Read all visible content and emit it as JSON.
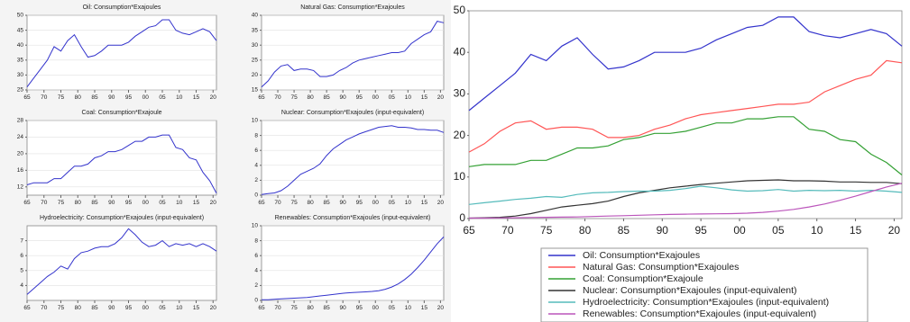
{
  "chart_data": [
    {
      "type": "line",
      "title": "Oil: Consumption*Exajoules",
      "color": "#3333cc",
      "x": [
        1965,
        1967,
        1969,
        1971,
        1973,
        1975,
        1977,
        1979,
        1981,
        1983,
        1985,
        1987,
        1989,
        1991,
        1993,
        1995,
        1997,
        1999,
        2001,
        2003,
        2005,
        2007,
        2009,
        2011,
        2013,
        2015,
        2017,
        2019,
        2021
      ],
      "values": [
        26,
        29,
        32,
        35,
        39.5,
        38,
        41.5,
        43.5,
        39.5,
        36,
        36.5,
        38,
        40,
        40,
        40,
        41,
        43,
        44.5,
        46,
        46.5,
        48.5,
        48.5,
        45,
        44,
        43.5,
        44.5,
        45.5,
        44.5,
        41.5
      ],
      "xlim": [
        1965,
        2021
      ],
      "xticks": [
        {
          "value": 1965,
          "label": "65"
        },
        {
          "value": 1970,
          "label": "70"
        },
        {
          "value": 1975,
          "label": "75"
        },
        {
          "value": 1980,
          "label": "80"
        },
        {
          "value": 1985,
          "label": "85"
        },
        {
          "value": 1990,
          "label": "90"
        },
        {
          "value": 1995,
          "label": "95"
        },
        {
          "value": 2000,
          "label": "00"
        },
        {
          "value": 2005,
          "label": "05"
        },
        {
          "value": 2010,
          "label": "10"
        },
        {
          "value": 2015,
          "label": "15"
        },
        {
          "value": 2020,
          "label": "20"
        }
      ],
      "ylim": [
        25,
        50
      ],
      "yticks": [
        25,
        30,
        35,
        40,
        45,
        50
      ],
      "grid": true
    },
    {
      "type": "line",
      "title": "Natural Gas: Consumption*Exajoules",
      "color": "#3333cc",
      "x": [
        1965,
        1967,
        1969,
        1971,
        1973,
        1975,
        1977,
        1979,
        1981,
        1983,
        1985,
        1987,
        1989,
        1991,
        1993,
        1995,
        1997,
        1999,
        2001,
        2003,
        2005,
        2007,
        2009,
        2011,
        2013,
        2015,
        2017,
        2019,
        2021
      ],
      "values": [
        16,
        18,
        21,
        23,
        23.5,
        21.5,
        22,
        22,
        21.5,
        19.5,
        19.5,
        20,
        21.5,
        22.5,
        24,
        25,
        25.5,
        26,
        26.5,
        27,
        27.5,
        27.5,
        28,
        30.5,
        32,
        33.5,
        34.5,
        38,
        37.5
      ],
      "xlim": [
        1965,
        2021
      ],
      "xticks": [
        {
          "value": 1965,
          "label": "65"
        },
        {
          "value": 1970,
          "label": "70"
        },
        {
          "value": 1975,
          "label": "75"
        },
        {
          "value": 1980,
          "label": "80"
        },
        {
          "value": 1985,
          "label": "85"
        },
        {
          "value": 1990,
          "label": "90"
        },
        {
          "value": 1995,
          "label": "95"
        },
        {
          "value": 2000,
          "label": "00"
        },
        {
          "value": 2005,
          "label": "05"
        },
        {
          "value": 2010,
          "label": "10"
        },
        {
          "value": 2015,
          "label": "15"
        },
        {
          "value": 2020,
          "label": "20"
        }
      ],
      "ylim": [
        15,
        40
      ],
      "yticks": [
        15,
        20,
        25,
        30,
        35,
        40
      ],
      "grid": true
    },
    {
      "type": "line",
      "title": "Coal: Consumption*Exajoule",
      "color": "#3333cc",
      "x": [
        1965,
        1967,
        1969,
        1971,
        1973,
        1975,
        1977,
        1979,
        1981,
        1983,
        1985,
        1987,
        1989,
        1991,
        1993,
        1995,
        1997,
        1999,
        2001,
        2003,
        2005,
        2007,
        2009,
        2011,
        2013,
        2015,
        2017,
        2019,
        2021
      ],
      "values": [
        12.5,
        13,
        13,
        13,
        14,
        14,
        15.5,
        17,
        17,
        17.5,
        19,
        19.5,
        20.5,
        20.5,
        21,
        22,
        23,
        23,
        24,
        24,
        24.5,
        24.5,
        21.5,
        21,
        19,
        18.5,
        15.5,
        13.5,
        10.5
      ],
      "xlim": [
        1965,
        2021
      ],
      "xticks": [
        {
          "value": 1965,
          "label": "65"
        },
        {
          "value": 1970,
          "label": "70"
        },
        {
          "value": 1975,
          "label": "75"
        },
        {
          "value": 1980,
          "label": "80"
        },
        {
          "value": 1985,
          "label": "85"
        },
        {
          "value": 1990,
          "label": "90"
        },
        {
          "value": 1995,
          "label": "95"
        },
        {
          "value": 2000,
          "label": "00"
        },
        {
          "value": 2005,
          "label": "05"
        },
        {
          "value": 2010,
          "label": "10"
        },
        {
          "value": 2015,
          "label": "15"
        },
        {
          "value": 2020,
          "label": "20"
        }
      ],
      "ylim": [
        10,
        28
      ],
      "yticks": [
        12,
        16,
        20,
        24,
        28
      ],
      "grid": true
    },
    {
      "type": "line",
      "title": "Nuclear: Consumption*Exajoules (input-equivalent)",
      "color": "#3333cc",
      "x": [
        1965,
        1967,
        1969,
        1971,
        1973,
        1975,
        1977,
        1979,
        1981,
        1983,
        1985,
        1987,
        1989,
        1991,
        1993,
        1995,
        1997,
        1999,
        2001,
        2003,
        2005,
        2007,
        2009,
        2011,
        2013,
        2015,
        2017,
        2019,
        2021
      ],
      "values": [
        0.1,
        0.2,
        0.3,
        0.6,
        1.2,
        2,
        2.8,
        3.2,
        3.6,
        4.2,
        5.3,
        6.2,
        6.8,
        7.4,
        7.8,
        8.2,
        8.5,
        8.8,
        9.1,
        9.2,
        9.3,
        9.1,
        9.1,
        9,
        8.8,
        8.8,
        8.7,
        8.7,
        8.4
      ],
      "xlim": [
        1965,
        2021
      ],
      "xticks": [
        {
          "value": 1965,
          "label": "65"
        },
        {
          "value": 1970,
          "label": "70"
        },
        {
          "value": 1975,
          "label": "75"
        },
        {
          "value": 1980,
          "label": "80"
        },
        {
          "value": 1985,
          "label": "85"
        },
        {
          "value": 1990,
          "label": "90"
        },
        {
          "value": 1995,
          "label": "95"
        },
        {
          "value": 2000,
          "label": "00"
        },
        {
          "value": 2005,
          "label": "05"
        },
        {
          "value": 2010,
          "label": "10"
        },
        {
          "value": 2015,
          "label": "15"
        },
        {
          "value": 2020,
          "label": "20"
        }
      ],
      "ylim": [
        0,
        10
      ],
      "yticks": [
        0,
        2,
        4,
        6,
        8,
        10
      ],
      "grid": true
    },
    {
      "type": "line",
      "title": "Hydroelectricity: Consumption*Exajoules (input-equivalent)",
      "color": "#3333cc",
      "x": [
        1965,
        1967,
        1969,
        1971,
        1973,
        1975,
        1977,
        1979,
        1981,
        1983,
        1985,
        1987,
        1989,
        1991,
        1993,
        1995,
        1997,
        1999,
        2001,
        2003,
        2005,
        2007,
        2009,
        2011,
        2013,
        2015,
        2017,
        2019,
        2021
      ],
      "values": [
        3.4,
        3.8,
        4.2,
        4.6,
        4.9,
        5.3,
        5.1,
        5.8,
        6.2,
        6.3,
        6.5,
        6.6,
        6.6,
        6.8,
        7.2,
        7.8,
        7.4,
        6.9,
        6.6,
        6.7,
        7,
        6.6,
        6.8,
        6.7,
        6.8,
        6.6,
        6.8,
        6.6,
        6.3
      ],
      "xlim": [
        1965,
        2021
      ],
      "xticks": [
        {
          "value": 1965,
          "label": "65"
        },
        {
          "value": 1970,
          "label": "70"
        },
        {
          "value": 1975,
          "label": "75"
        },
        {
          "value": 1980,
          "label": "80"
        },
        {
          "value": 1985,
          "label": "85"
        },
        {
          "value": 1990,
          "label": "90"
        },
        {
          "value": 1995,
          "label": "95"
        },
        {
          "value": 2000,
          "label": "00"
        },
        {
          "value": 2005,
          "label": "05"
        },
        {
          "value": 2010,
          "label": "10"
        },
        {
          "value": 2015,
          "label": "15"
        },
        {
          "value": 2020,
          "label": "20"
        }
      ],
      "ylim": [
        3,
        8
      ],
      "yticks": [
        4,
        5,
        6,
        7
      ],
      "grid": true
    },
    {
      "type": "line",
      "title": "Renewables: Consumption*Exajoules (input-equivalent)",
      "color": "#3333cc",
      "x": [
        1965,
        1967,
        1969,
        1971,
        1973,
        1975,
        1977,
        1979,
        1981,
        1983,
        1985,
        1987,
        1989,
        1991,
        1993,
        1995,
        1997,
        1999,
        2001,
        2003,
        2005,
        2007,
        2009,
        2011,
        2013,
        2015,
        2017,
        2019,
        2021
      ],
      "values": [
        0.1,
        0.1,
        0.15,
        0.2,
        0.25,
        0.3,
        0.35,
        0.4,
        0.5,
        0.6,
        0.7,
        0.8,
        0.9,
        1,
        1.05,
        1.1,
        1.15,
        1.2,
        1.3,
        1.5,
        1.8,
        2.2,
        2.8,
        3.5,
        4.4,
        5.4,
        6.5,
        7.6,
        8.5
      ],
      "xlim": [
        1965,
        2021
      ],
      "xticks": [
        {
          "value": 1965,
          "label": "65"
        },
        {
          "value": 1970,
          "label": "70"
        },
        {
          "value": 1975,
          "label": "75"
        },
        {
          "value": 1980,
          "label": "80"
        },
        {
          "value": 1985,
          "label": "85"
        },
        {
          "value": 1990,
          "label": "90"
        },
        {
          "value": 1995,
          "label": "95"
        },
        {
          "value": 2000,
          "label": "00"
        },
        {
          "value": 2005,
          "label": "05"
        },
        {
          "value": 2010,
          "label": "10"
        },
        {
          "value": 2015,
          "label": "15"
        },
        {
          "value": 2020,
          "label": "20"
        }
      ],
      "ylim": [
        0,
        10
      ],
      "yticks": [
        0,
        2,
        4,
        6,
        8,
        10
      ],
      "grid": true
    },
    {
      "type": "line",
      "legend": "bottom",
      "x": [
        1965,
        1967,
        1969,
        1971,
        1973,
        1975,
        1977,
        1979,
        1981,
        1983,
        1985,
        1987,
        1989,
        1991,
        1993,
        1995,
        1997,
        1999,
        2001,
        2003,
        2005,
        2007,
        2009,
        2011,
        2013,
        2015,
        2017,
        2019,
        2021
      ],
      "series": [
        {
          "name": "Oil: Consumption*Exajoules",
          "color": "#3333cc",
          "values": [
            26,
            29,
            32,
            35,
            39.5,
            38,
            41.5,
            43.5,
            39.5,
            36,
            36.5,
            38,
            40,
            40,
            40,
            41,
            43,
            44.5,
            46,
            46.5,
            48.5,
            48.5,
            45,
            44,
            43.5,
            44.5,
            45.5,
            44.5,
            41.5
          ]
        },
        {
          "name": "Natural Gas: Consumption*Exajoules",
          "color": "#ff5555",
          "values": [
            16,
            18,
            21,
            23,
            23.5,
            21.5,
            22,
            22,
            21.5,
            19.5,
            19.5,
            20,
            21.5,
            22.5,
            24,
            25,
            25.5,
            26,
            26.5,
            27,
            27.5,
            27.5,
            28,
            30.5,
            32,
            33.5,
            34.5,
            38,
            37.5
          ]
        },
        {
          "name": "Coal: Consumption*Exajoule",
          "color": "#33a033",
          "values": [
            12.5,
            13,
            13,
            13,
            14,
            14,
            15.5,
            17,
            17,
            17.5,
            19,
            19.5,
            20.5,
            20.5,
            21,
            22,
            23,
            23,
            24,
            24,
            24.5,
            24.5,
            21.5,
            21,
            19,
            18.5,
            15.5,
            13.5,
            10.5
          ]
        },
        {
          "name": "Nuclear: Consumption*Exajoules (input-equivalent)",
          "color": "#333333",
          "values": [
            0.1,
            0.2,
            0.3,
            0.6,
            1.2,
            2,
            2.8,
            3.2,
            3.6,
            4.2,
            5.3,
            6.2,
            6.8,
            7.4,
            7.8,
            8.2,
            8.5,
            8.8,
            9.1,
            9.2,
            9.3,
            9.1,
            9.1,
            9,
            8.8,
            8.8,
            8.7,
            8.7,
            8.4
          ]
        },
        {
          "name": "Hydroelectricity: Consumption*Exajoules (input-equivalent)",
          "color": "#55bbbb",
          "values": [
            3.4,
            3.8,
            4.2,
            4.6,
            4.9,
            5.3,
            5.1,
            5.8,
            6.2,
            6.3,
            6.5,
            6.6,
            6.6,
            6.8,
            7.2,
            7.8,
            7.4,
            6.9,
            6.6,
            6.7,
            7,
            6.6,
            6.8,
            6.7,
            6.8,
            6.6,
            6.8,
            6.6,
            6.3
          ]
        },
        {
          "name": "Renewables: Consumption*Exajoules (input-equivalent)",
          "color": "#bb55bb",
          "values": [
            0.1,
            0.1,
            0.15,
            0.2,
            0.25,
            0.3,
            0.35,
            0.4,
            0.5,
            0.6,
            0.7,
            0.8,
            0.9,
            1,
            1.05,
            1.1,
            1.15,
            1.2,
            1.3,
            1.5,
            1.8,
            2.2,
            2.8,
            3.5,
            4.4,
            5.4,
            6.5,
            7.6,
            8.5
          ]
        }
      ],
      "xlim": [
        1965,
        2021
      ],
      "xticks": [
        {
          "value": 1965,
          "label": "65"
        },
        {
          "value": 1970,
          "label": "70"
        },
        {
          "value": 1975,
          "label": "75"
        },
        {
          "value": 1980,
          "label": "80"
        },
        {
          "value": 1985,
          "label": "85"
        },
        {
          "value": 1990,
          "label": "90"
        },
        {
          "value": 1995,
          "label": "95"
        },
        {
          "value": 2000,
          "label": "00"
        },
        {
          "value": 2005,
          "label": "05"
        },
        {
          "value": 2010,
          "label": "10"
        },
        {
          "value": 2015,
          "label": "15"
        },
        {
          "value": 2020,
          "label": "20"
        }
      ],
      "ylim": [
        0,
        50
      ],
      "yticks": [
        0,
        10,
        20,
        30,
        40,
        50
      ],
      "grid": false
    }
  ]
}
